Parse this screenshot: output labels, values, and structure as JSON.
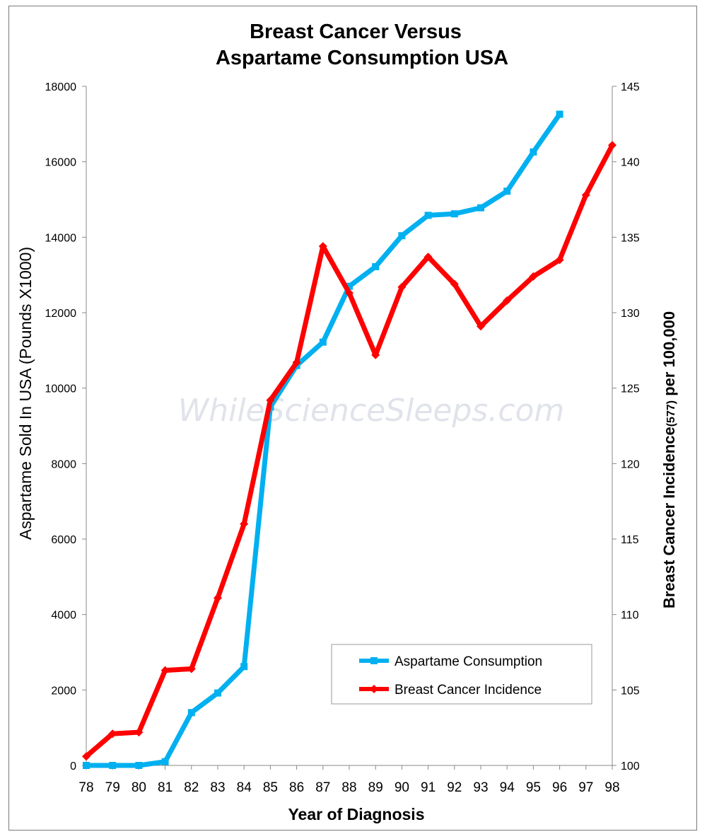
{
  "chart_data": {
    "type": "line",
    "title": [
      "Breast Cancer Versus",
      "Aspartame Consumption USA"
    ],
    "xlabel": "Year of Diagnosis",
    "ylabel_left": "Aspartame Sold In USA  (Pounds X1000)",
    "ylabel_right": {
      "main": "Breast Cancer Incidence",
      "sub": "(577)",
      "tail": " per 100,000"
    },
    "categories": [
      "78",
      "79",
      "80",
      "81",
      "82",
      "83",
      "84",
      "85",
      "86",
      "87",
      "88",
      "89",
      "90",
      "91",
      "92",
      "93",
      "94",
      "95",
      "96",
      "97",
      "98"
    ],
    "ylim_left": [
      0,
      18000
    ],
    "yticks_left": [
      "0",
      "2000",
      "4000",
      "6000",
      "8000",
      "10000",
      "12000",
      "14000",
      "16000",
      "18000"
    ],
    "ylim_right": [
      100,
      145
    ],
    "yticks_right": [
      "100",
      "105",
      "110",
      "115",
      "120",
      "125",
      "130",
      "135",
      "140",
      "145"
    ],
    "grid": false,
    "legend_position": "lower-right",
    "watermark": "WhileScienceSleeps.com",
    "series": [
      {
        "name": "Aspartame Consumption",
        "axis": "left",
        "color": "#00b0f0",
        "marker": "square",
        "values": [
          0,
          0,
          0,
          100,
          1400,
          1920,
          2620,
          9500,
          10600,
          11220,
          12700,
          13220,
          14040,
          14580,
          14620,
          14780,
          15220,
          16260,
          17260,
          null,
          null
        ]
      },
      {
        "name": "Breast Cancer Incidence",
        "axis": "right",
        "color": "#ff0000",
        "marker": "diamond",
        "values": [
          100.6,
          102.1,
          102.2,
          106.3,
          106.4,
          111.1,
          116.0,
          124.2,
          126.7,
          134.4,
          131.3,
          127.2,
          131.7,
          133.7,
          131.9,
          129.1,
          130.8,
          132.4,
          133.5,
          137.8,
          141.1
        ]
      }
    ]
  }
}
